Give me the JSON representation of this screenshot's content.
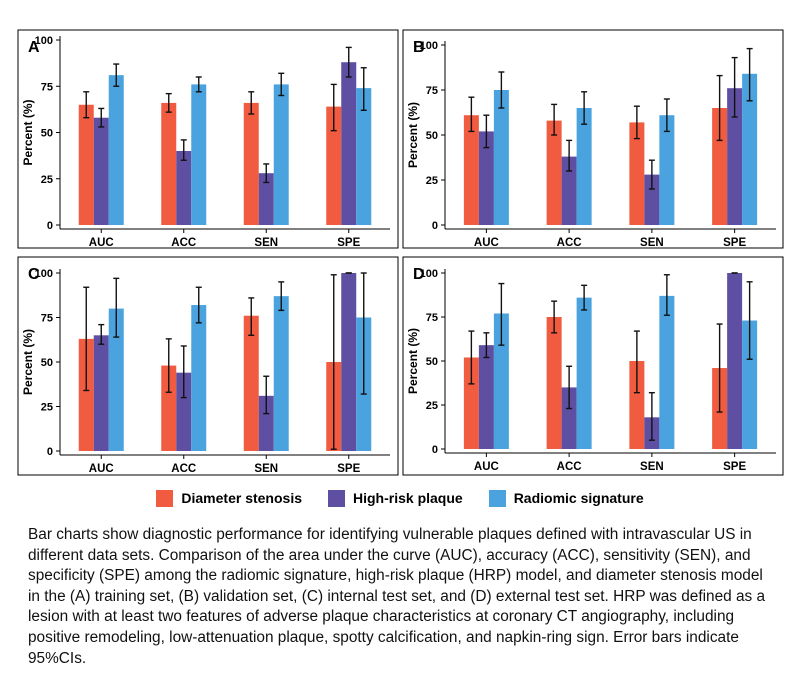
{
  "legend": [
    {
      "label": "Diameter stenosis",
      "color": "#f15b40"
    },
    {
      "label": "High-risk plaque",
      "color": "#5e4fa2"
    },
    {
      "label": "Radiomic signature",
      "color": "#4aa3df"
    }
  ],
  "caption": "Bar charts show diagnostic performance for identifying vulnerable plaques defined with intravascular US in different data sets. Comparison of the area under the curve (AUC), accuracy (ACC), sensitivity (SEN), and specificity (SPE) among the radiomic signature, high-risk plaque (HRP) model, and diameter stenosis model in the (A) training set, (B) validation set, (C) internal test set, and (D) external test set. HRP was defined as a lesion with at least two features of adverse plaque characteristics at coronary CT angiography, including positive remodeling, low-attenuation plaque, spotty calcification, and napkin-ring sign. Error bars indicate 95%CIs.",
  "chart_data": [
    {
      "panel": "A",
      "type": "bar",
      "categories": [
        "AUC",
        "ACC",
        "SEN",
        "SPE"
      ],
      "ylabel": "Percent (%)",
      "ylim": [
        0,
        100
      ],
      "yticks": [
        0,
        25,
        50,
        75,
        100
      ],
      "series": [
        {
          "name": "Diameter stenosis",
          "values": [
            65,
            66,
            66,
            64
          ],
          "ci_low": [
            58,
            61,
            60,
            51
          ],
          "ci_high": [
            72,
            71,
            72,
            76
          ]
        },
        {
          "name": "High-risk plaque",
          "values": [
            58,
            40,
            28,
            88
          ],
          "ci_low": [
            53,
            35,
            23,
            80
          ],
          "ci_high": [
            63,
            46,
            33,
            96
          ]
        },
        {
          "name": "Radiomic signature",
          "values": [
            81,
            76,
            76,
            74
          ],
          "ci_low": [
            75,
            72,
            70,
            62
          ],
          "ci_high": [
            87,
            80,
            82,
            85
          ]
        }
      ]
    },
    {
      "panel": "B",
      "type": "bar",
      "categories": [
        "AUC",
        "ACC",
        "SEN",
        "SPE"
      ],
      "ylabel": "Percent (%)",
      "ylim": [
        0,
        100
      ],
      "yticks": [
        0,
        25,
        50,
        75,
        100
      ],
      "series": [
        {
          "name": "Diameter stenosis",
          "values": [
            61,
            58,
            57,
            65
          ],
          "ci_low": [
            52,
            50,
            48,
            47
          ],
          "ci_high": [
            71,
            67,
            66,
            83
          ]
        },
        {
          "name": "High-risk plaque",
          "values": [
            52,
            38,
            28,
            76
          ],
          "ci_low": [
            43,
            30,
            20,
            60
          ],
          "ci_high": [
            61,
            47,
            36,
            93
          ]
        },
        {
          "name": "Radiomic signature",
          "values": [
            75,
            65,
            61,
            84
          ],
          "ci_low": [
            65,
            56,
            52,
            69
          ],
          "ci_high": [
            85,
            74,
            70,
            98
          ]
        }
      ]
    },
    {
      "panel": "C",
      "type": "bar",
      "categories": [
        "AUC",
        "ACC",
        "SEN",
        "SPE"
      ],
      "ylabel": "Percent (%)",
      "ylim": [
        0,
        100
      ],
      "yticks": [
        0,
        25,
        50,
        75,
        100
      ],
      "series": [
        {
          "name": "Diameter stenosis",
          "values": [
            63,
            48,
            76,
            50
          ],
          "ci_low": [
            34,
            33,
            65,
            1
          ],
          "ci_high": [
            92,
            63,
            86,
            99
          ]
        },
        {
          "name": "High-risk plaque",
          "values": [
            65,
            44,
            31,
            100
          ],
          "ci_low": [
            60,
            30,
            21,
            100
          ],
          "ci_high": [
            71,
            59,
            42,
            100
          ]
        },
        {
          "name": "Radiomic signature",
          "values": [
            80,
            82,
            87,
            75
          ],
          "ci_low": [
            64,
            72,
            79,
            32
          ],
          "ci_high": [
            97,
            92,
            95,
            100
          ]
        }
      ]
    },
    {
      "panel": "D",
      "type": "bar",
      "categories": [
        "AUC",
        "ACC",
        "SEN",
        "SPE"
      ],
      "ylabel": "Percent (%)",
      "ylim": [
        0,
        100
      ],
      "yticks": [
        0,
        25,
        50,
        75,
        100
      ],
      "series": [
        {
          "name": "Diameter stenosis",
          "values": [
            52,
            75,
            50,
            46
          ],
          "ci_low": [
            37,
            66,
            32,
            21
          ],
          "ci_high": [
            67,
            84,
            67,
            71
          ]
        },
        {
          "name": "High-risk plaque",
          "values": [
            59,
            35,
            18,
            100
          ],
          "ci_low": [
            52,
            23,
            5,
            100
          ],
          "ci_high": [
            66,
            47,
            32,
            100
          ]
        },
        {
          "name": "Radiomic signature",
          "values": [
            77,
            86,
            87,
            73
          ],
          "ci_low": [
            59,
            79,
            76,
            51
          ],
          "ci_high": [
            94,
            93,
            99,
            95
          ]
        }
      ]
    }
  ]
}
